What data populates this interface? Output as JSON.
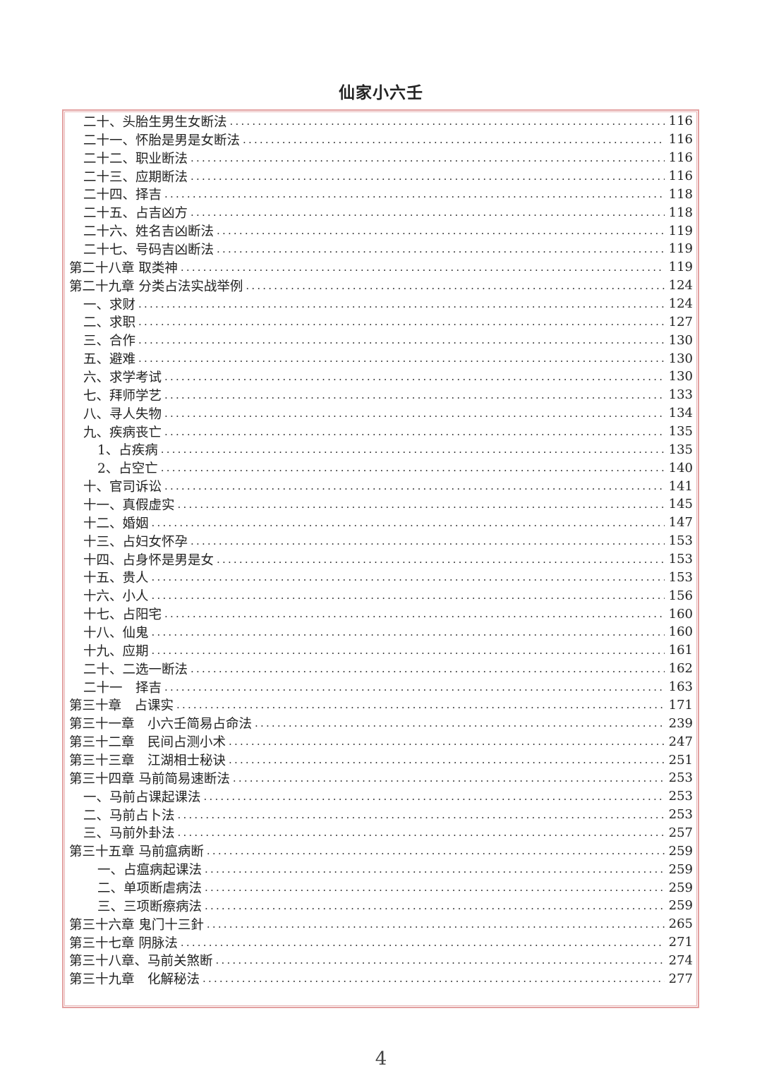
{
  "title": "仙家小六壬",
  "page_number": "4",
  "border_color": "#e3a0a0",
  "entries": [
    {
      "label": "二十、头胎生男生女断法",
      "page": "116",
      "level": 1
    },
    {
      "label": "二十一、怀胎是男是女断法",
      "page": "116",
      "level": 1
    },
    {
      "label": "二十二、职业断法",
      "page": "116",
      "level": 1
    },
    {
      "label": "二十三、应期断法",
      "page": "116",
      "level": 1
    },
    {
      "label": "二十四、择吉",
      "page": "118",
      "level": 1
    },
    {
      "label": "二十五、占吉凶方",
      "page": "118",
      "level": 1
    },
    {
      "label": "二十六、姓名吉凶断法",
      "page": "119",
      "level": 1
    },
    {
      "label": "二十七、号码吉凶断法",
      "page": "119",
      "level": 1
    },
    {
      "label": "第二十八章 取类神",
      "page": "119",
      "level": 0
    },
    {
      "label": "第二十九章 分类占法实战举例",
      "page": "124",
      "level": 0
    },
    {
      "label": "一、求财",
      "page": "124",
      "level": 1
    },
    {
      "label": "二、求职",
      "page": "127",
      "level": 1
    },
    {
      "label": "三、合作",
      "page": "130",
      "level": 1
    },
    {
      "label": "五、避难",
      "page": "130",
      "level": 1
    },
    {
      "label": "六、求学考试",
      "page": "130",
      "level": 1
    },
    {
      "label": "七、拜师学艺",
      "page": "133",
      "level": 1
    },
    {
      "label": "八、寻人失物",
      "page": "134",
      "level": 1
    },
    {
      "label": "九、疾病丧亡",
      "page": "135",
      "level": 1
    },
    {
      "label": "1、占疾病",
      "page": "135",
      "level": 2
    },
    {
      "label": "2、占空亡",
      "page": "140",
      "level": 2
    },
    {
      "label": "十、官司诉讼",
      "page": "141",
      "level": 1
    },
    {
      "label": "十一、真假虚实",
      "page": "145",
      "level": 1
    },
    {
      "label": "十二、婚姻",
      "page": "147",
      "level": 1
    },
    {
      "label": "十三、占妇女怀孕",
      "page": "153",
      "level": 1
    },
    {
      "label": "十四、占身怀是男是女",
      "page": "153",
      "level": 1
    },
    {
      "label": "十五、贵人",
      "page": "153",
      "level": 1
    },
    {
      "label": "十六、小人",
      "page": "156",
      "level": 1
    },
    {
      "label": "十七、占阳宅",
      "page": "160",
      "level": 1
    },
    {
      "label": "十八、仙鬼",
      "page": "160",
      "level": 1
    },
    {
      "label": "十九、应期",
      "page": "161",
      "level": 1
    },
    {
      "label": "二十、二选一断法",
      "page": "162",
      "level": 1
    },
    {
      "label": "二十一　择吉",
      "page": "163",
      "level": 1
    },
    {
      "label": "第三十章　占课实",
      "page": "171",
      "level": 0
    },
    {
      "label": "第三十一章　小六壬简易占命法",
      "page": "239",
      "level": 0
    },
    {
      "label": "第三十二章　民间占测小术",
      "page": "247",
      "level": 0
    },
    {
      "label": "第三十三章　江湖相士秘诀",
      "page": "251",
      "level": 0
    },
    {
      "label": "第三十四章 马前简易速断法",
      "page": "253",
      "level": 0
    },
    {
      "label": "一、马前占课起课法",
      "page": "253",
      "level": 1
    },
    {
      "label": "二、马前占卜法",
      "page": "253",
      "level": 1
    },
    {
      "label": "三、马前外卦法",
      "page": "257",
      "level": 1
    },
    {
      "label": "第三十五章 马前瘟病断",
      "page": "259",
      "level": 0
    },
    {
      "label": "一、占瘟病起课法",
      "page": "259",
      "level": 2
    },
    {
      "label": "二、单项断虐病法",
      "page": "259",
      "level": 2
    },
    {
      "label": "三、三项断瘵病法",
      "page": "259",
      "level": 2
    },
    {
      "label": "第三十六章 鬼门十三針",
      "page": "265",
      "level": 0
    },
    {
      "label": "第三十七章 阴脉法",
      "page": "271",
      "level": 0
    },
    {
      "label": "第三十八章、马前关煞断",
      "page": "274",
      "level": 0
    },
    {
      "label": "第三十九章　化解秘法",
      "page": "277",
      "level": 0
    }
  ]
}
